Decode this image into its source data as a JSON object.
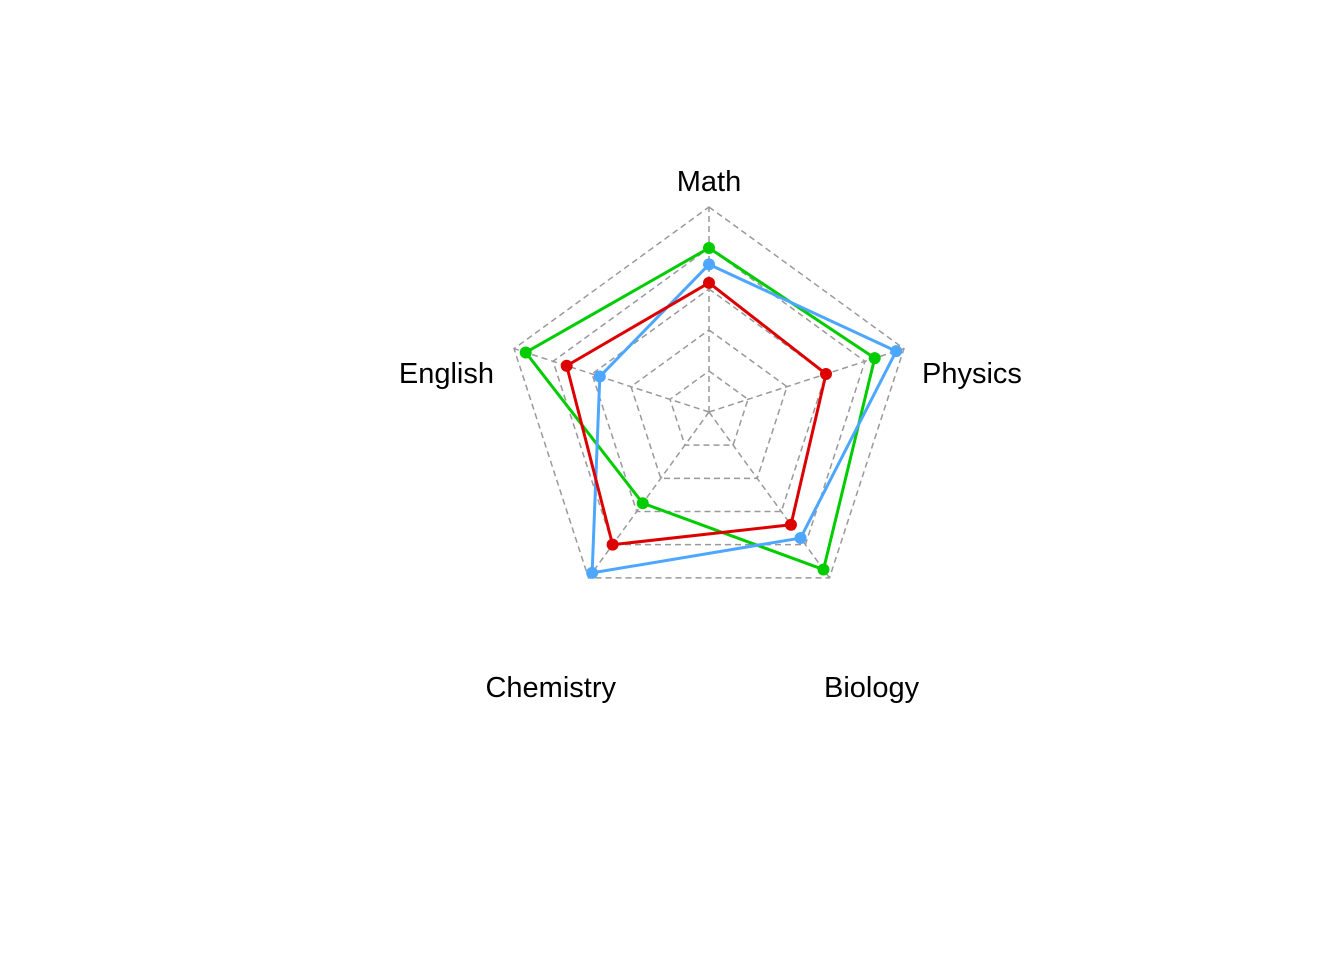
{
  "chart_data": {
    "type": "radar",
    "axes": [
      "Math",
      "Physics",
      "Biology",
      "Chemistry",
      "English"
    ],
    "range": [
      0,
      1
    ],
    "grid_levels": [
      0.2,
      0.4,
      0.6,
      0.8,
      1.0
    ],
    "grid": true,
    "legend": false,
    "series": [
      {
        "color": "#00CC00",
        "values": [
          0.8,
          0.85,
          0.95,
          0.55,
          0.94
        ]
      },
      {
        "color": "#4DA6FF",
        "values": [
          0.72,
          0.96,
          0.76,
          0.97,
          0.56
        ]
      },
      {
        "color": "#DD0000",
        "values": [
          0.63,
          0.6,
          0.68,
          0.8,
          0.73
        ]
      }
    ]
  }
}
